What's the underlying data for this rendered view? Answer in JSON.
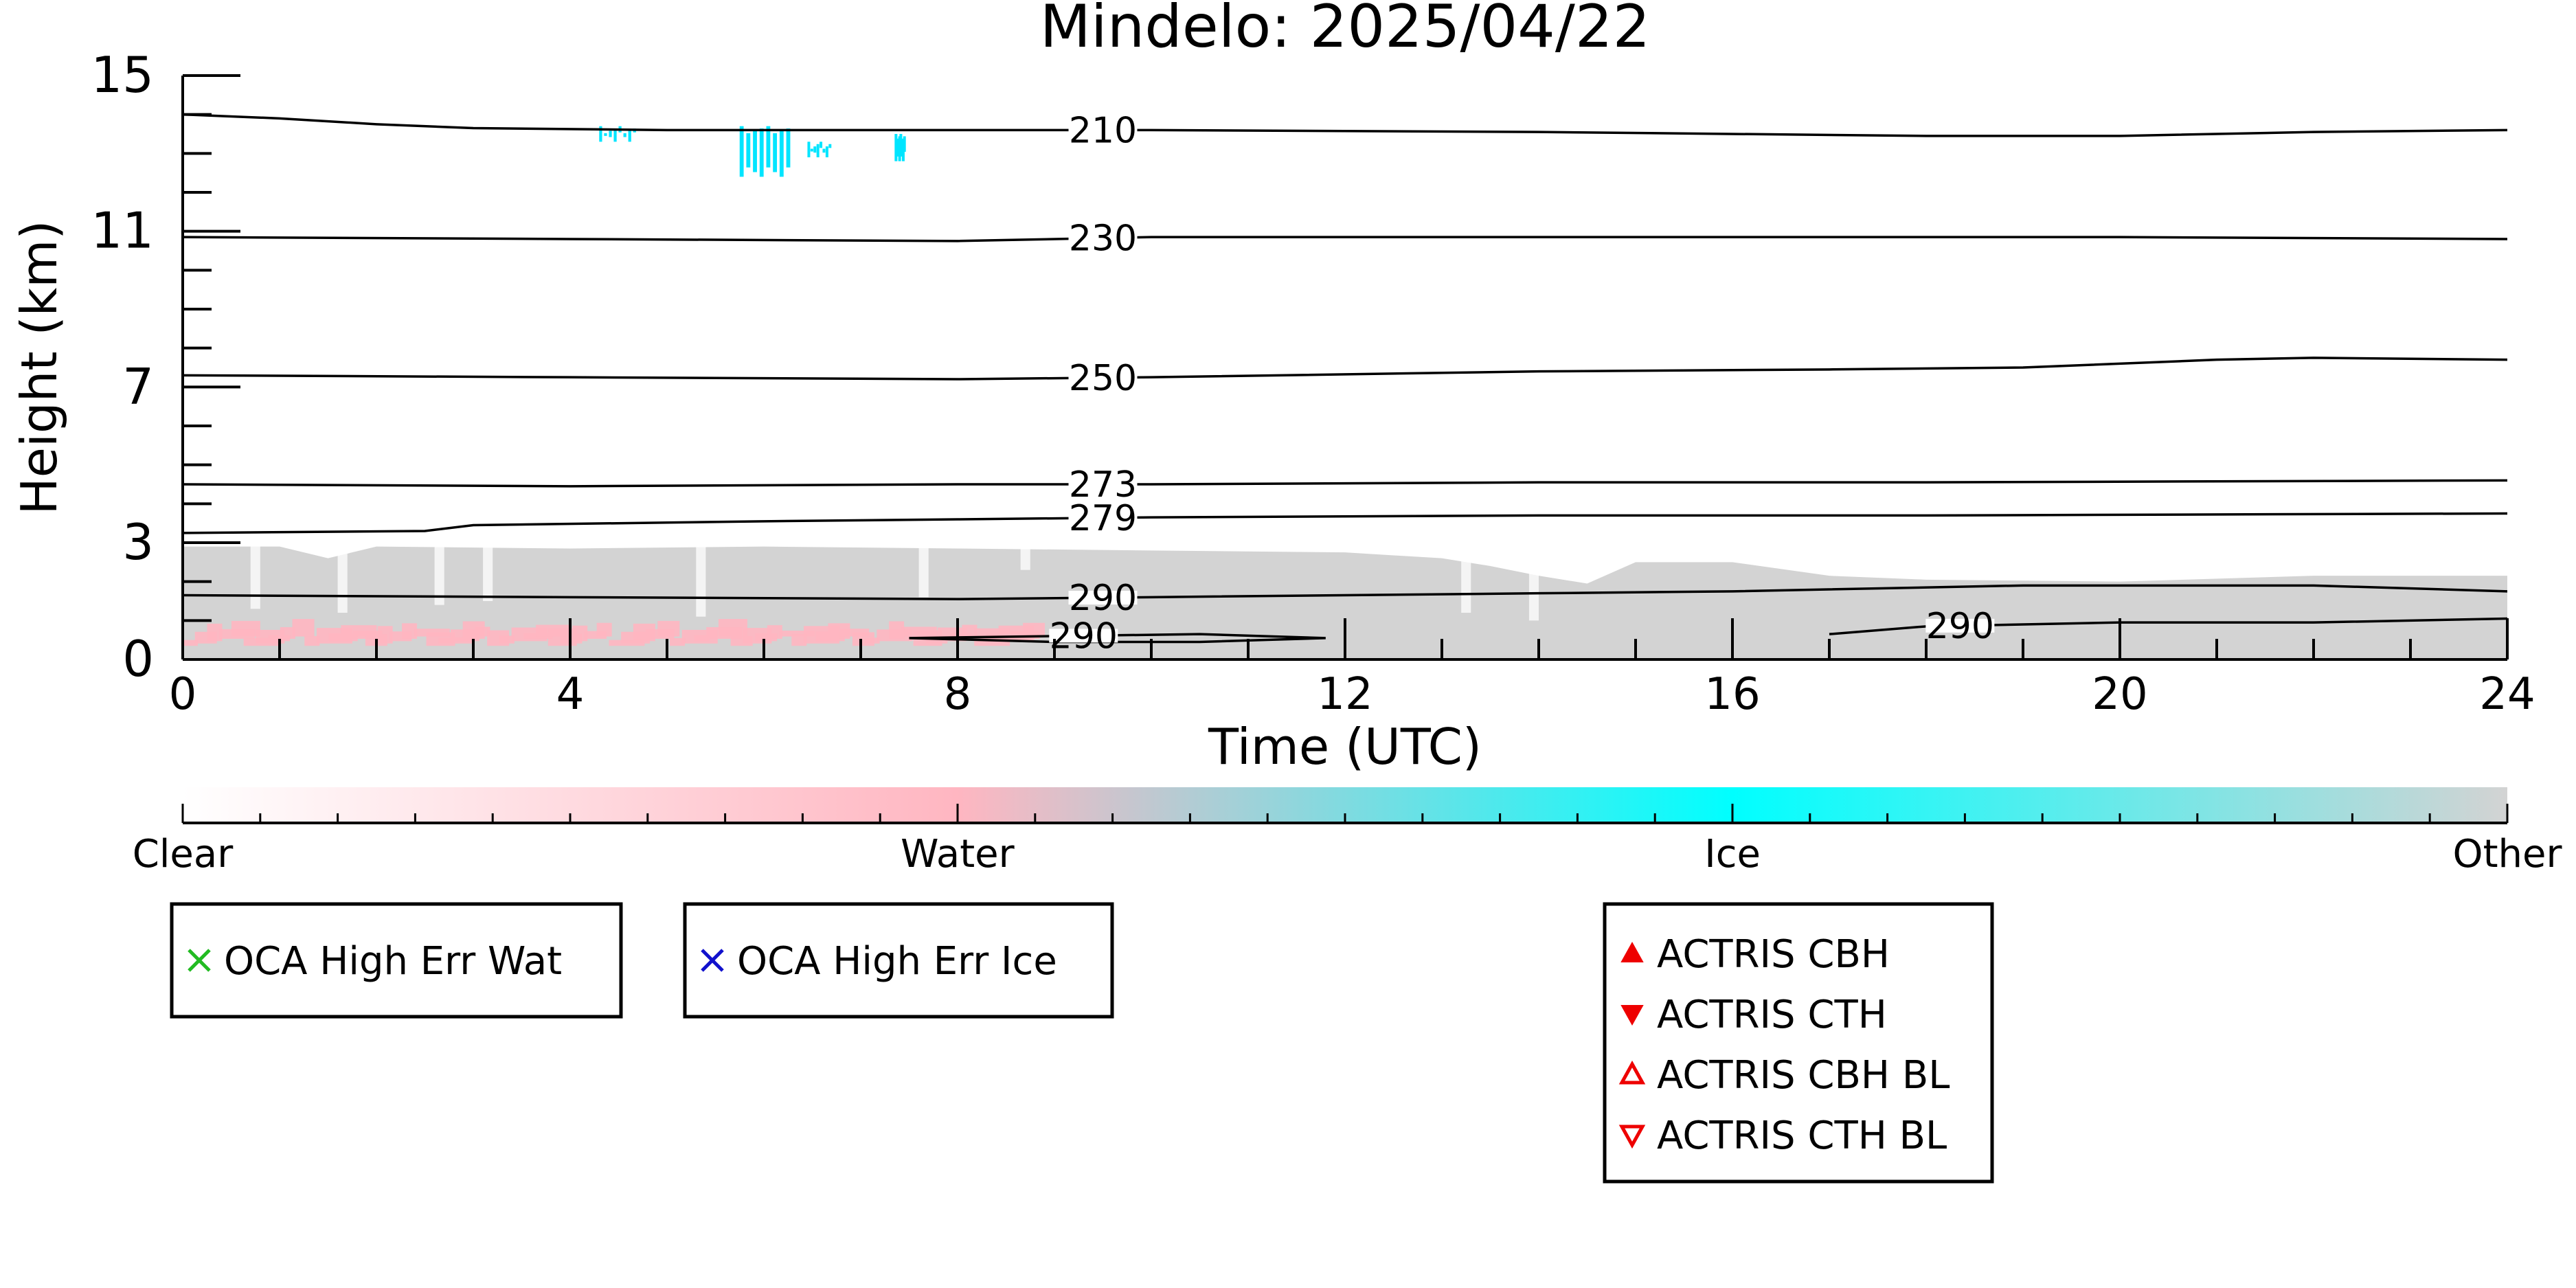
{
  "chart_data": {
    "type": "heatmap",
    "title": "Mindelo: 2025/04/22",
    "xlabel": "Time (UTC)",
    "ylabel": "Height (km)",
    "xlim": [
      0,
      24
    ],
    "ylim": [
      0,
      15
    ],
    "x_ticks": [
      0,
      4,
      8,
      12,
      16,
      20,
      24
    ],
    "y_ticks": [
      0,
      3,
      7,
      11,
      15
    ],
    "grid": false,
    "categories": [
      "Clear",
      "Water",
      "Ice",
      "Other"
    ],
    "colorbar_colors": [
      "#ffffff",
      "#ffb6c1",
      "#00ffff",
      "#d3d3d3"
    ],
    "colorbar_labels": [
      {
        "label": "Clear",
        "pos": 0
      },
      {
        "label": "Water",
        "pos": 0.3333
      },
      {
        "label": "Ice",
        "pos": 0.6667
      },
      {
        "label": "Other",
        "pos": 1
      }
    ],
    "contours": [
      {
        "label": "210",
        "label_x": 9.5,
        "points": [
          [
            0,
            14.0
          ],
          [
            1,
            13.9
          ],
          [
            2,
            13.75
          ],
          [
            3,
            13.65
          ],
          [
            5,
            13.6
          ],
          [
            8,
            13.6
          ],
          [
            10,
            13.6
          ],
          [
            14,
            13.55
          ],
          [
            18,
            13.45
          ],
          [
            20,
            13.45
          ],
          [
            22,
            13.55
          ],
          [
            24,
            13.6
          ]
        ]
      },
      {
        "label": "230",
        "label_x": 9.5,
        "points": [
          [
            0,
            10.85
          ],
          [
            4,
            10.8
          ],
          [
            8,
            10.75
          ],
          [
            10,
            10.85
          ],
          [
            14,
            10.85
          ],
          [
            18,
            10.85
          ],
          [
            20,
            10.85
          ],
          [
            24,
            10.8
          ]
        ]
      },
      {
        "label": "250",
        "label_x": 9.5,
        "points": [
          [
            0,
            7.3
          ],
          [
            4,
            7.25
          ],
          [
            8,
            7.2
          ],
          [
            10,
            7.25
          ],
          [
            14,
            7.4
          ],
          [
            17,
            7.45
          ],
          [
            19,
            7.5
          ],
          [
            21,
            7.7
          ],
          [
            22,
            7.75
          ],
          [
            24,
            7.7
          ]
        ]
      },
      {
        "label": "273",
        "label_x": 9.5,
        "points": [
          [
            0,
            4.5
          ],
          [
            4,
            4.45
          ],
          [
            8,
            4.5
          ],
          [
            10,
            4.5
          ],
          [
            14,
            4.55
          ],
          [
            18,
            4.55
          ],
          [
            24,
            4.6
          ]
        ]
      },
      {
        "label": "279",
        "label_x": 9.5,
        "points": [
          [
            0,
            3.25
          ],
          [
            2.5,
            3.3
          ],
          [
            3,
            3.45
          ],
          [
            6,
            3.55
          ],
          [
            8,
            3.6
          ],
          [
            10,
            3.65
          ],
          [
            14,
            3.7
          ],
          [
            18,
            3.7
          ],
          [
            24,
            3.75
          ]
        ]
      },
      {
        "label": "290",
        "label_x": 9.5,
        "points": [
          [
            0,
            1.65
          ],
          [
            4,
            1.6
          ],
          [
            8,
            1.55
          ],
          [
            10,
            1.6
          ],
          [
            14,
            1.7
          ],
          [
            16,
            1.75
          ],
          [
            19,
            1.9
          ],
          [
            22,
            1.9
          ],
          [
            24,
            1.75
          ]
        ]
      },
      {
        "label": "290",
        "label_x": 9.3,
        "points": [
          [
            7.5,
            0.55
          ],
          [
            9,
            0.6
          ],
          [
            10.5,
            0.65
          ],
          [
            11.8,
            0.55
          ],
          [
            10.5,
            0.45
          ],
          [
            9,
            0.45
          ],
          [
            7.5,
            0.55
          ]
        ]
      },
      {
        "label": "290",
        "label_x": 18.35,
        "points": [
          [
            17,
            0.65
          ],
          [
            18,
            0.85
          ],
          [
            20,
            0.95
          ],
          [
            22,
            0.95
          ],
          [
            24,
            1.05
          ]
        ]
      }
    ],
    "gray_region": [
      [
        0,
        2.9
      ],
      [
        1,
        2.9
      ],
      [
        1.5,
        2.6
      ],
      [
        2,
        2.9
      ],
      [
        4,
        2.85
      ],
      [
        6,
        2.9
      ],
      [
        8,
        2.85
      ],
      [
        10,
        2.8
      ],
      [
        12,
        2.75
      ],
      [
        13,
        2.6
      ],
      [
        13.5,
        2.4
      ],
      [
        14,
        2.15
      ],
      [
        14.5,
        1.95
      ],
      [
        15,
        2.5
      ],
      [
        16,
        2.5
      ],
      [
        17,
        2.15
      ],
      [
        18,
        2.05
      ],
      [
        20,
        2.0
      ],
      [
        22,
        2.15
      ],
      [
        24,
        2.15
      ]
    ],
    "ice_cloud_patches": [
      {
        "x": [
          4.3,
          4.7
        ],
        "y": [
          13.3,
          13.7
        ]
      },
      {
        "x": [
          5.75,
          6.3
        ],
        "y": [
          12.4,
          13.7
        ]
      },
      {
        "x": [
          6.45,
          6.7
        ],
        "y": [
          12.9,
          13.3
        ]
      },
      {
        "x": [
          7.35,
          7.45
        ],
        "y": [
          12.8,
          13.5
        ]
      }
    ],
    "water_region": {
      "x": [
        0,
        8.8
      ],
      "y": [
        0.35,
        0.85
      ]
    }
  },
  "legend_boxes": [
    {
      "items": [
        {
          "marker": "x",
          "color": "#22bb22",
          "label": "OCA High Err Wat"
        }
      ]
    },
    {
      "items": [
        {
          "marker": "x",
          "color": "#1111cc",
          "label": "OCA High Err Ice"
        }
      ]
    },
    {
      "items": [
        {
          "marker": "triangle-up",
          "color": "#ee0000",
          "label": "ACTRIS CBH"
        },
        {
          "marker": "triangle-down",
          "color": "#ee0000",
          "label": "ACTRIS CTH"
        },
        {
          "marker": "triangle-up-open",
          "color": "#ee0000",
          "label": "ACTRIS CBH BL"
        },
        {
          "marker": "triangle-down-open",
          "color": "#ee0000",
          "label": "ACTRIS CTH BL"
        }
      ]
    }
  ]
}
